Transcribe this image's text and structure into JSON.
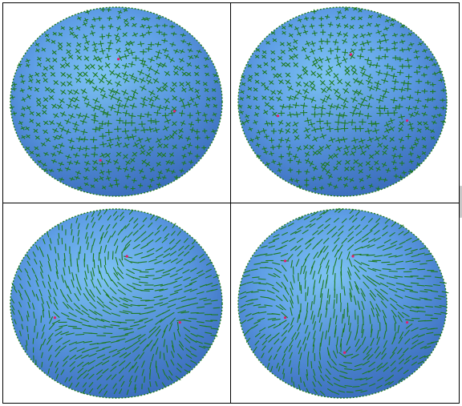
{
  "figure": {
    "layout": "2x2 grid",
    "panels": [
      {
        "id": "top-left",
        "glyph": "cross",
        "singularities": 3
      },
      {
        "id": "top-right",
        "glyph": "cross",
        "singularities": 3
      },
      {
        "id": "bottom-left",
        "glyph": "line",
        "singularities": 3
      },
      {
        "id": "bottom-right",
        "glyph": "line",
        "singularities": 5
      }
    ]
  },
  "colors": {
    "panel_border": "#000000",
    "sphere_light": "#7fc6f4",
    "sphere_mid": "#5f9fe6",
    "sphere_dark": "#3f73c2",
    "field_glyph": "#1e7a1e",
    "singularity_marker": "#e0206a"
  }
}
